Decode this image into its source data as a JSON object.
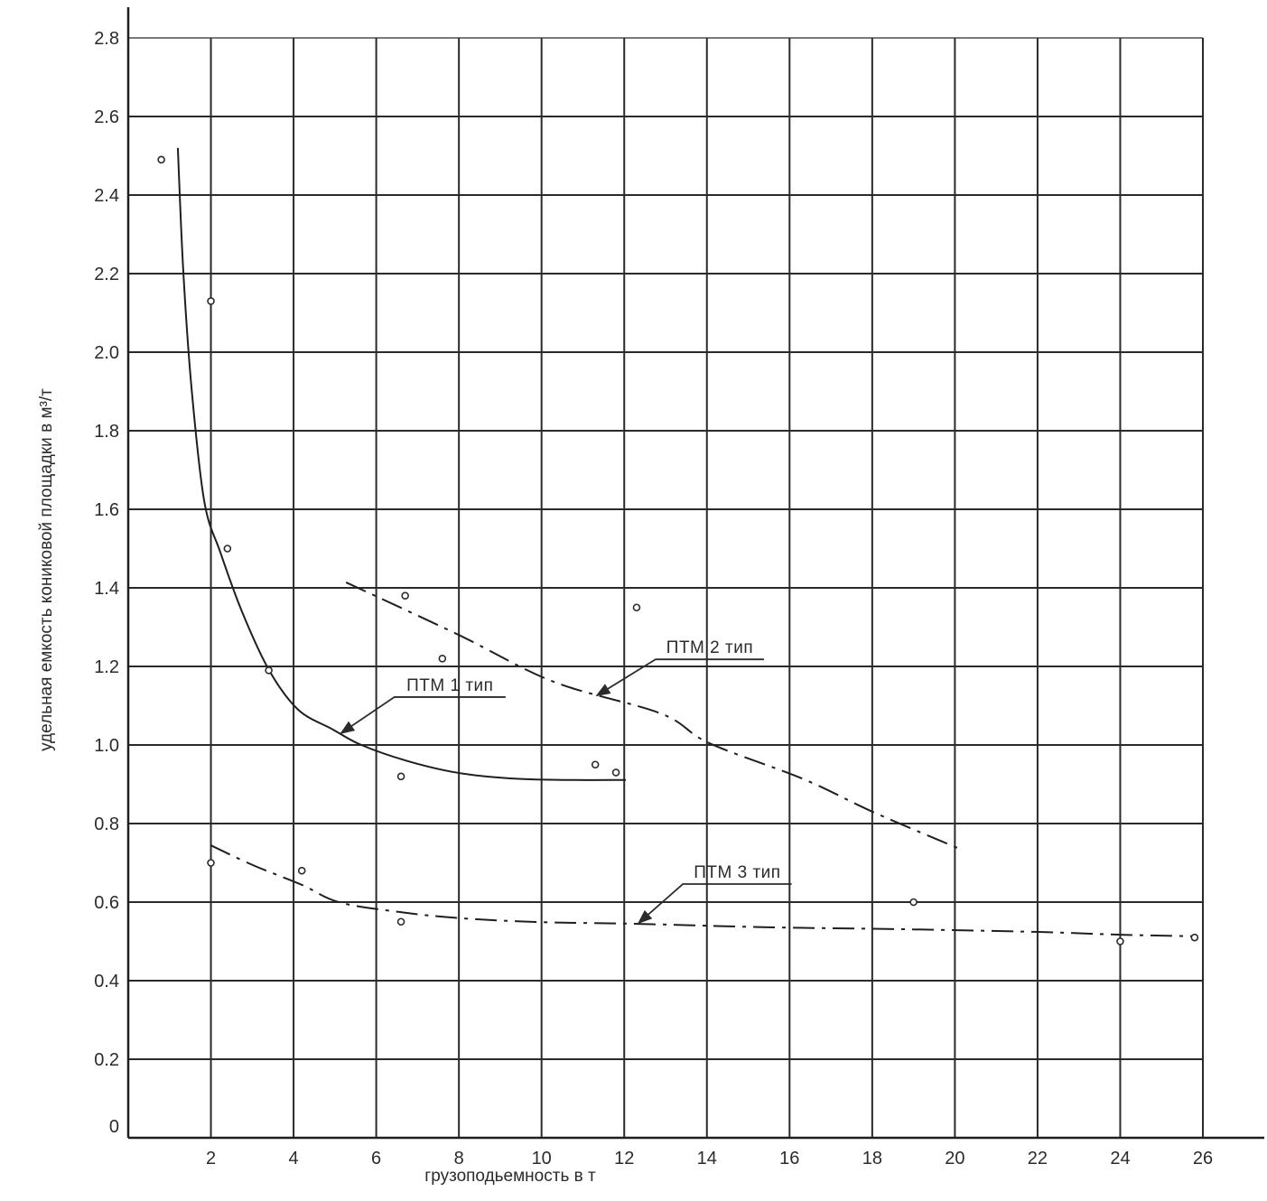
{
  "figure": {
    "background": "#ffffff"
  },
  "colors": {
    "grid": "#2a2a2a",
    "axis": "#1f1f1f",
    "curve": "#1f1f1f",
    "marker_stroke": "#2b2b2b",
    "marker_fill": "#ffffff",
    "text": "#2b2b2b"
  },
  "chart_data": {
    "type": "scatter",
    "title": "",
    "xlabel": "грузоподьемность в т",
    "ylabel": "удельная емкость кониковой площадки в м³/т",
    "xlim": [
      0,
      26
    ],
    "ylim": [
      0,
      2.8
    ],
    "grid": true,
    "legend_position": "none",
    "marker": "open-circle",
    "x_ticks": [
      {
        "v": 2,
        "label": "2"
      },
      {
        "v": 4,
        "label": "4"
      },
      {
        "v": 6,
        "label": "6"
      },
      {
        "v": 8,
        "label": "8"
      },
      {
        "v": 10,
        "label": "10"
      },
      {
        "v": 12,
        "label": "12"
      },
      {
        "v": 14,
        "label": "14"
      },
      {
        "v": 16,
        "label": "16"
      },
      {
        "v": 18,
        "label": "18"
      },
      {
        "v": 20,
        "label": "20"
      },
      {
        "v": 22,
        "label": "22"
      },
      {
        "v": 24,
        "label": "24"
      },
      {
        "v": 26,
        "label": "26"
      }
    ],
    "y_ticks": [
      {
        "v": 0,
        "label": "0"
      },
      {
        "v": 0.2,
        "label": "0.2"
      },
      {
        "v": 0.4,
        "label": "0.4"
      },
      {
        "v": 0.6,
        "label": "0.6"
      },
      {
        "v": 0.8,
        "label": "0.8"
      },
      {
        "v": 1.0,
        "label": "1.0"
      },
      {
        "v": 1.2,
        "label": "1.2"
      },
      {
        "v": 1.4,
        "label": "1.4"
      },
      {
        "v": 1.6,
        "label": "1.6"
      },
      {
        "v": 1.8,
        "label": "1.8"
      },
      {
        "v": 2.0,
        "label": "2.0"
      },
      {
        "v": 2.2,
        "label": "2.2"
      },
      {
        "v": 2.4,
        "label": "2.4"
      },
      {
        "v": 2.6,
        "label": "2.6"
      },
      {
        "v": 2.8,
        "label": "2.8"
      }
    ],
    "scatter_series": [
      {
        "name": "ПТМ 1 тип",
        "points": [
          [
            0.8,
            2.49
          ],
          [
            2.0,
            2.13
          ],
          [
            2.4,
            1.5
          ],
          [
            3.4,
            1.19
          ],
          [
            6.6,
            0.92
          ],
          [
            11.3,
            0.95
          ],
          [
            11.8,
            0.93
          ]
        ]
      },
      {
        "name": "ПТМ 2 тип",
        "points": [
          [
            6.7,
            1.38
          ],
          [
            7.6,
            1.22
          ],
          [
            12.3,
            1.35
          ]
        ]
      },
      {
        "name": "ПТМ 3 тип",
        "points": [
          [
            2.0,
            0.7
          ],
          [
            4.2,
            0.68
          ],
          [
            6.6,
            0.55
          ],
          [
            19.0,
            0.6
          ],
          [
            24.0,
            0.5
          ],
          [
            25.8,
            0.51
          ]
        ]
      }
    ],
    "curves": [
      {
        "name": "ПТМ 1 тип",
        "style": "solid",
        "points": [
          [
            1.2,
            2.52
          ],
          [
            1.33,
            2.21
          ],
          [
            1.53,
            1.91
          ],
          [
            1.84,
            1.62
          ],
          [
            2.23,
            1.49
          ],
          [
            2.75,
            1.34
          ],
          [
            3.41,
            1.19
          ],
          [
            4.11,
            1.09
          ],
          [
            4.94,
            1.04
          ],
          [
            5.64,
            1.0
          ],
          [
            6.73,
            0.96
          ],
          [
            7.93,
            0.93
          ],
          [
            9.24,
            0.915
          ],
          [
            10.55,
            0.911
          ],
          [
            12.04,
            0.911
          ]
        ]
      },
      {
        "name": "ПТМ 2 тип",
        "style": "dashdot",
        "points": [
          [
            5.27,
            1.414
          ],
          [
            7.98,
            1.281
          ],
          [
            10.29,
            1.161
          ],
          [
            12.89,
            1.08
          ],
          [
            14.05,
            1.005
          ],
          [
            16.34,
            0.913
          ],
          [
            18.05,
            0.828
          ],
          [
            20.06,
            0.738
          ]
        ]
      },
      {
        "name": "ПТМ 3 тип",
        "style": "dashdot",
        "points": [
          [
            1.99,
            0.745
          ],
          [
            3.02,
            0.694
          ],
          [
            4.2,
            0.644
          ],
          [
            5.09,
            0.6
          ],
          [
            6.55,
            0.575
          ],
          [
            8.04,
            0.559
          ],
          [
            10.01,
            0.549
          ],
          [
            12.19,
            0.545
          ],
          [
            15.47,
            0.536
          ],
          [
            18.74,
            0.531
          ],
          [
            22.02,
            0.524
          ],
          [
            23.99,
            0.517
          ],
          [
            25.8,
            0.513
          ]
        ]
      }
    ],
    "annotations": [
      {
        "text": "ПТМ 1 тип",
        "underline": [
          [
            6.44,
            1.122
          ],
          [
            9.13,
            1.122
          ]
        ],
        "arrow_tip": [
          5.15,
          1.03
        ]
      },
      {
        "text": "ПТМ 2 тип",
        "underline": [
          [
            12.76,
            1.218
          ],
          [
            15.38,
            1.218
          ]
        ],
        "arrow_tip": [
          11.34,
          1.126
        ]
      },
      {
        "text": "ПТМ 3 тип",
        "underline": [
          [
            13.42,
            0.646
          ],
          [
            16.05,
            0.646
          ]
        ],
        "arrow_tip": [
          12.35,
          0.547
        ]
      }
    ]
  }
}
